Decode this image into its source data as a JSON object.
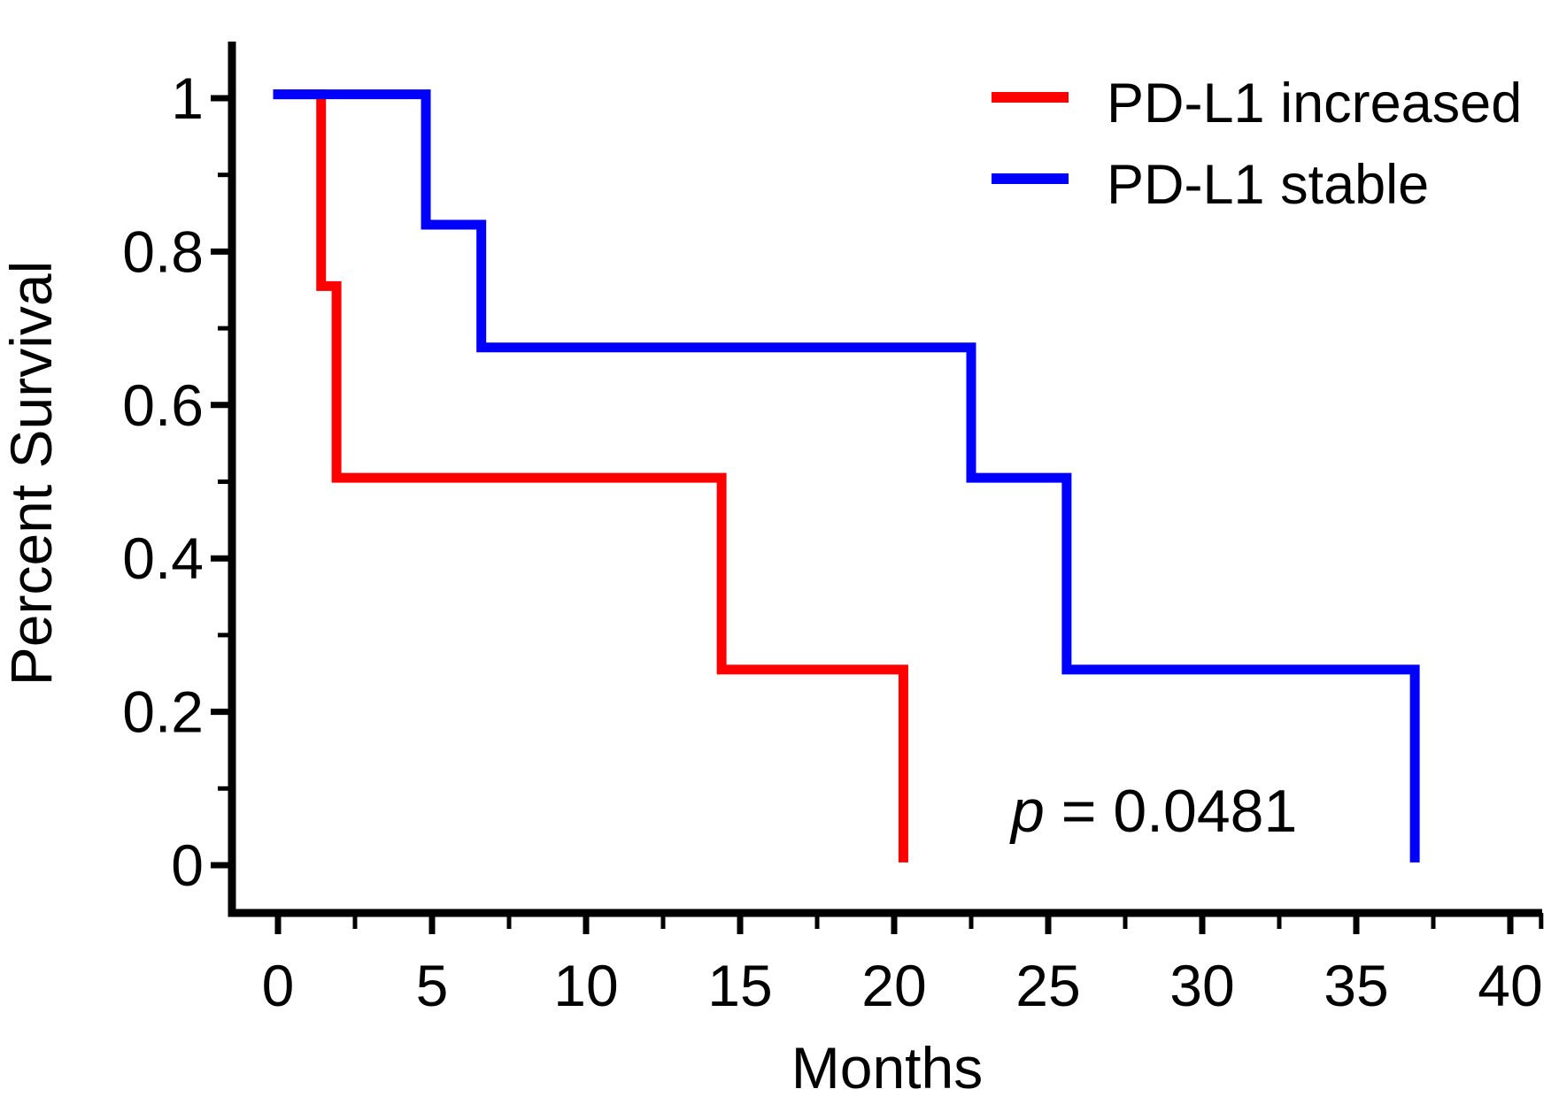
{
  "figure": {
    "background": "#ffffff",
    "text_color": "#000000",
    "axis_color": "#000000"
  },
  "chart_data": {
    "type": "line",
    "subtype": "kaplan-meier-step",
    "title": "",
    "xlabel": "Months",
    "ylabel": "Percent Survival",
    "xlim": [
      0,
      40
    ],
    "ylim": [
      0,
      1
    ],
    "grid": false,
    "legend_position": "top-right",
    "x_major_ticks": [
      0,
      5,
      10,
      15,
      20,
      25,
      30,
      35,
      40
    ],
    "x_tick_labels": [
      "0",
      "5",
      "10",
      "15",
      "20",
      "25",
      "30",
      "35",
      "40"
    ],
    "x_minor_ticks": [
      2.5,
      7.5,
      12.5,
      17.5,
      22.5,
      27.5,
      32.5,
      37.5,
      41
    ],
    "y_major_ticks": [
      0,
      0.2,
      0.4,
      0.6,
      0.8,
      1
    ],
    "y_tick_labels": [
      "0",
      "0.2",
      "0.4",
      "0.6",
      "0.8",
      "1"
    ],
    "y_minor_ticks": [
      0.1,
      0.3,
      0.5,
      0.7,
      0.9
    ],
    "series": [
      {
        "name": "PD-L1 increased",
        "color": "#ff0000",
        "event_times_months": [
          1.4,
          1.9,
          14.4,
          20.3
        ],
        "survival_levels": [
          1.0,
          0.75,
          0.5,
          0.25,
          0
        ],
        "step_points": [
          [
            0,
            1.005
          ],
          [
            1.4,
            1.005
          ],
          [
            1.4,
            0.755
          ],
          [
            1.9,
            0.755
          ],
          [
            1.9,
            0.505
          ],
          [
            14.4,
            0.505
          ],
          [
            14.4,
            0.255
          ],
          [
            20.3,
            0.255
          ],
          [
            20.3,
            0.01
          ]
        ]
      },
      {
        "name": "PD-L1 stable",
        "color": "#0000ff",
        "event_times_months": [
          4.8,
          6.6,
          22.5,
          25.6,
          36.9
        ],
        "survival_levels": [
          1.0,
          0.835,
          0.675,
          0.505,
          0.255,
          0
        ],
        "step_points": [
          [
            0,
            1.005
          ],
          [
            4.8,
            1.005
          ],
          [
            4.8,
            0.835
          ],
          [
            6.6,
            0.835
          ],
          [
            6.6,
            0.675
          ],
          [
            22.5,
            0.675
          ],
          [
            22.5,
            0.505
          ],
          [
            25.6,
            0.505
          ],
          [
            25.6,
            0.255
          ],
          [
            36.9,
            0.255
          ],
          [
            36.9,
            0.01
          ]
        ]
      }
    ]
  },
  "axes": {
    "x_title": "Months",
    "y_title": "Percent Survival"
  },
  "legend": {
    "items": [
      {
        "label": "PD-L1 increased",
        "color": "#ff0000"
      },
      {
        "label": "PD-L1 stable",
        "color": "#0000ff"
      }
    ]
  },
  "stats": {
    "p_symbol": "p",
    "p_rest": "= 0.0481"
  }
}
